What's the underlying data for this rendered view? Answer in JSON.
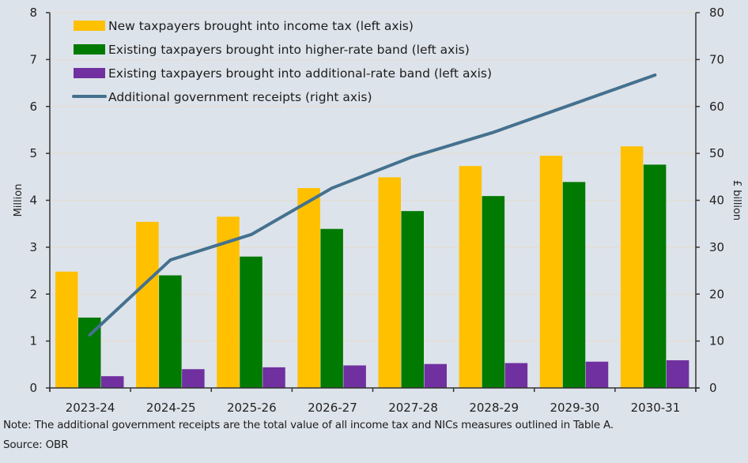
{
  "chart_data": {
    "type": "bar+line",
    "title": "",
    "categories": [
      "2023-24",
      "2024-25",
      "2025-26",
      "2026-27",
      "2027-28",
      "2028-29",
      "2029-30",
      "2030-31"
    ],
    "series": [
      {
        "name": "New taxpayers brought into income tax (left axis)",
        "type": "bar",
        "axis": "left",
        "color": "#ffc000",
        "values": [
          2.48,
          3.54,
          3.65,
          4.26,
          4.49,
          4.73,
          4.95,
          5.15
        ]
      },
      {
        "name": "Existing taxpayers brought into higher-rate band (left axis)",
        "type": "bar",
        "axis": "left",
        "color": "#007a00",
        "values": [
          1.5,
          2.4,
          2.8,
          3.39,
          3.77,
          4.09,
          4.39,
          4.76
        ]
      },
      {
        "name": "Existing taxpayers brought into additional-rate band (left axis)",
        "type": "bar",
        "axis": "left",
        "color": "#7030a0",
        "values": [
          0.25,
          0.4,
          0.44,
          0.48,
          0.51,
          0.53,
          0.56,
          0.59
        ]
      },
      {
        "name": "Additional government receipts (right axis)",
        "type": "line",
        "axis": "right",
        "color": "#44718f",
        "values": [
          11.3,
          27.3,
          32.7,
          42.6,
          49.3,
          54.5,
          60.6,
          66.7
        ]
      }
    ],
    "left_axis": {
      "label": "Million",
      "range": [
        0,
        8
      ],
      "ticks": [
        "0",
        "1",
        "2",
        "3",
        "4",
        "5",
        "6",
        "7",
        "8"
      ]
    },
    "right_axis": {
      "label": "£ billion",
      "range": [
        0,
        80
      ],
      "ticks": [
        "0",
        "10",
        "20",
        "30",
        "40",
        "50",
        "60",
        "70",
        "80"
      ]
    },
    "grid": true,
    "legend": "top-left"
  },
  "footer": {
    "note": "Note: The additional government receipts are the total value of all income tax and NICs measures outlined in Table A.",
    "source": "Source: OBR"
  },
  "colors": {
    "background": "#dde3ea",
    "gridline": "#e6dccf",
    "axis": "#333333"
  }
}
